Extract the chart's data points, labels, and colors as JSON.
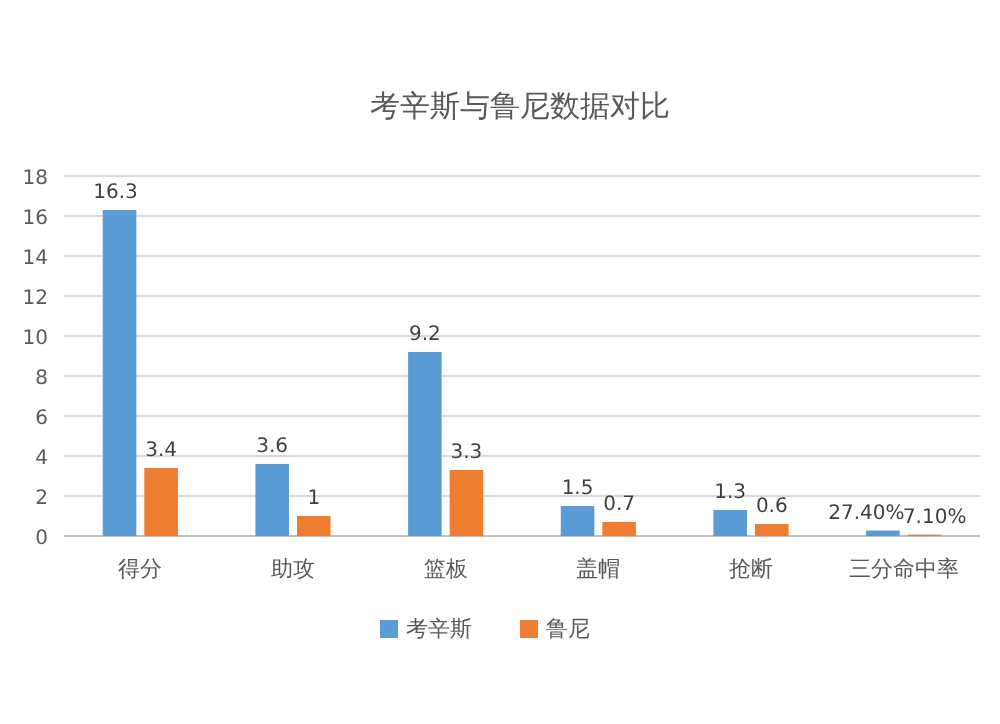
{
  "chart_data": {
    "type": "bar",
    "title": "考辛斯与鲁尼数据对比",
    "categories": [
      "得分",
      "助攻",
      "篮板",
      "盖帽",
      "抢断",
      "三分命中率"
    ],
    "series": [
      {
        "name": "考辛斯",
        "color": "#5b9bd5",
        "values": [
          16.3,
          3.6,
          9.2,
          1.5,
          1.3,
          0.274
        ],
        "value_labels": [
          "16.3",
          "3.6",
          "9.2",
          "1.5",
          "1.3",
          "27.40%"
        ]
      },
      {
        "name": "鲁尼",
        "color": "#ed7d31",
        "values": [
          3.4,
          1,
          3.3,
          0.7,
          0.6,
          0.071
        ],
        "value_labels": [
          "3.4",
          "1",
          "3.3",
          "0.7",
          "0.6",
          "7.10%"
        ]
      }
    ],
    "ylim": [
      0,
      18
    ],
    "yticks": [
      0,
      2,
      4,
      6,
      8,
      10,
      12,
      14,
      16,
      18
    ],
    "grid": "y",
    "legend": "bottom"
  }
}
